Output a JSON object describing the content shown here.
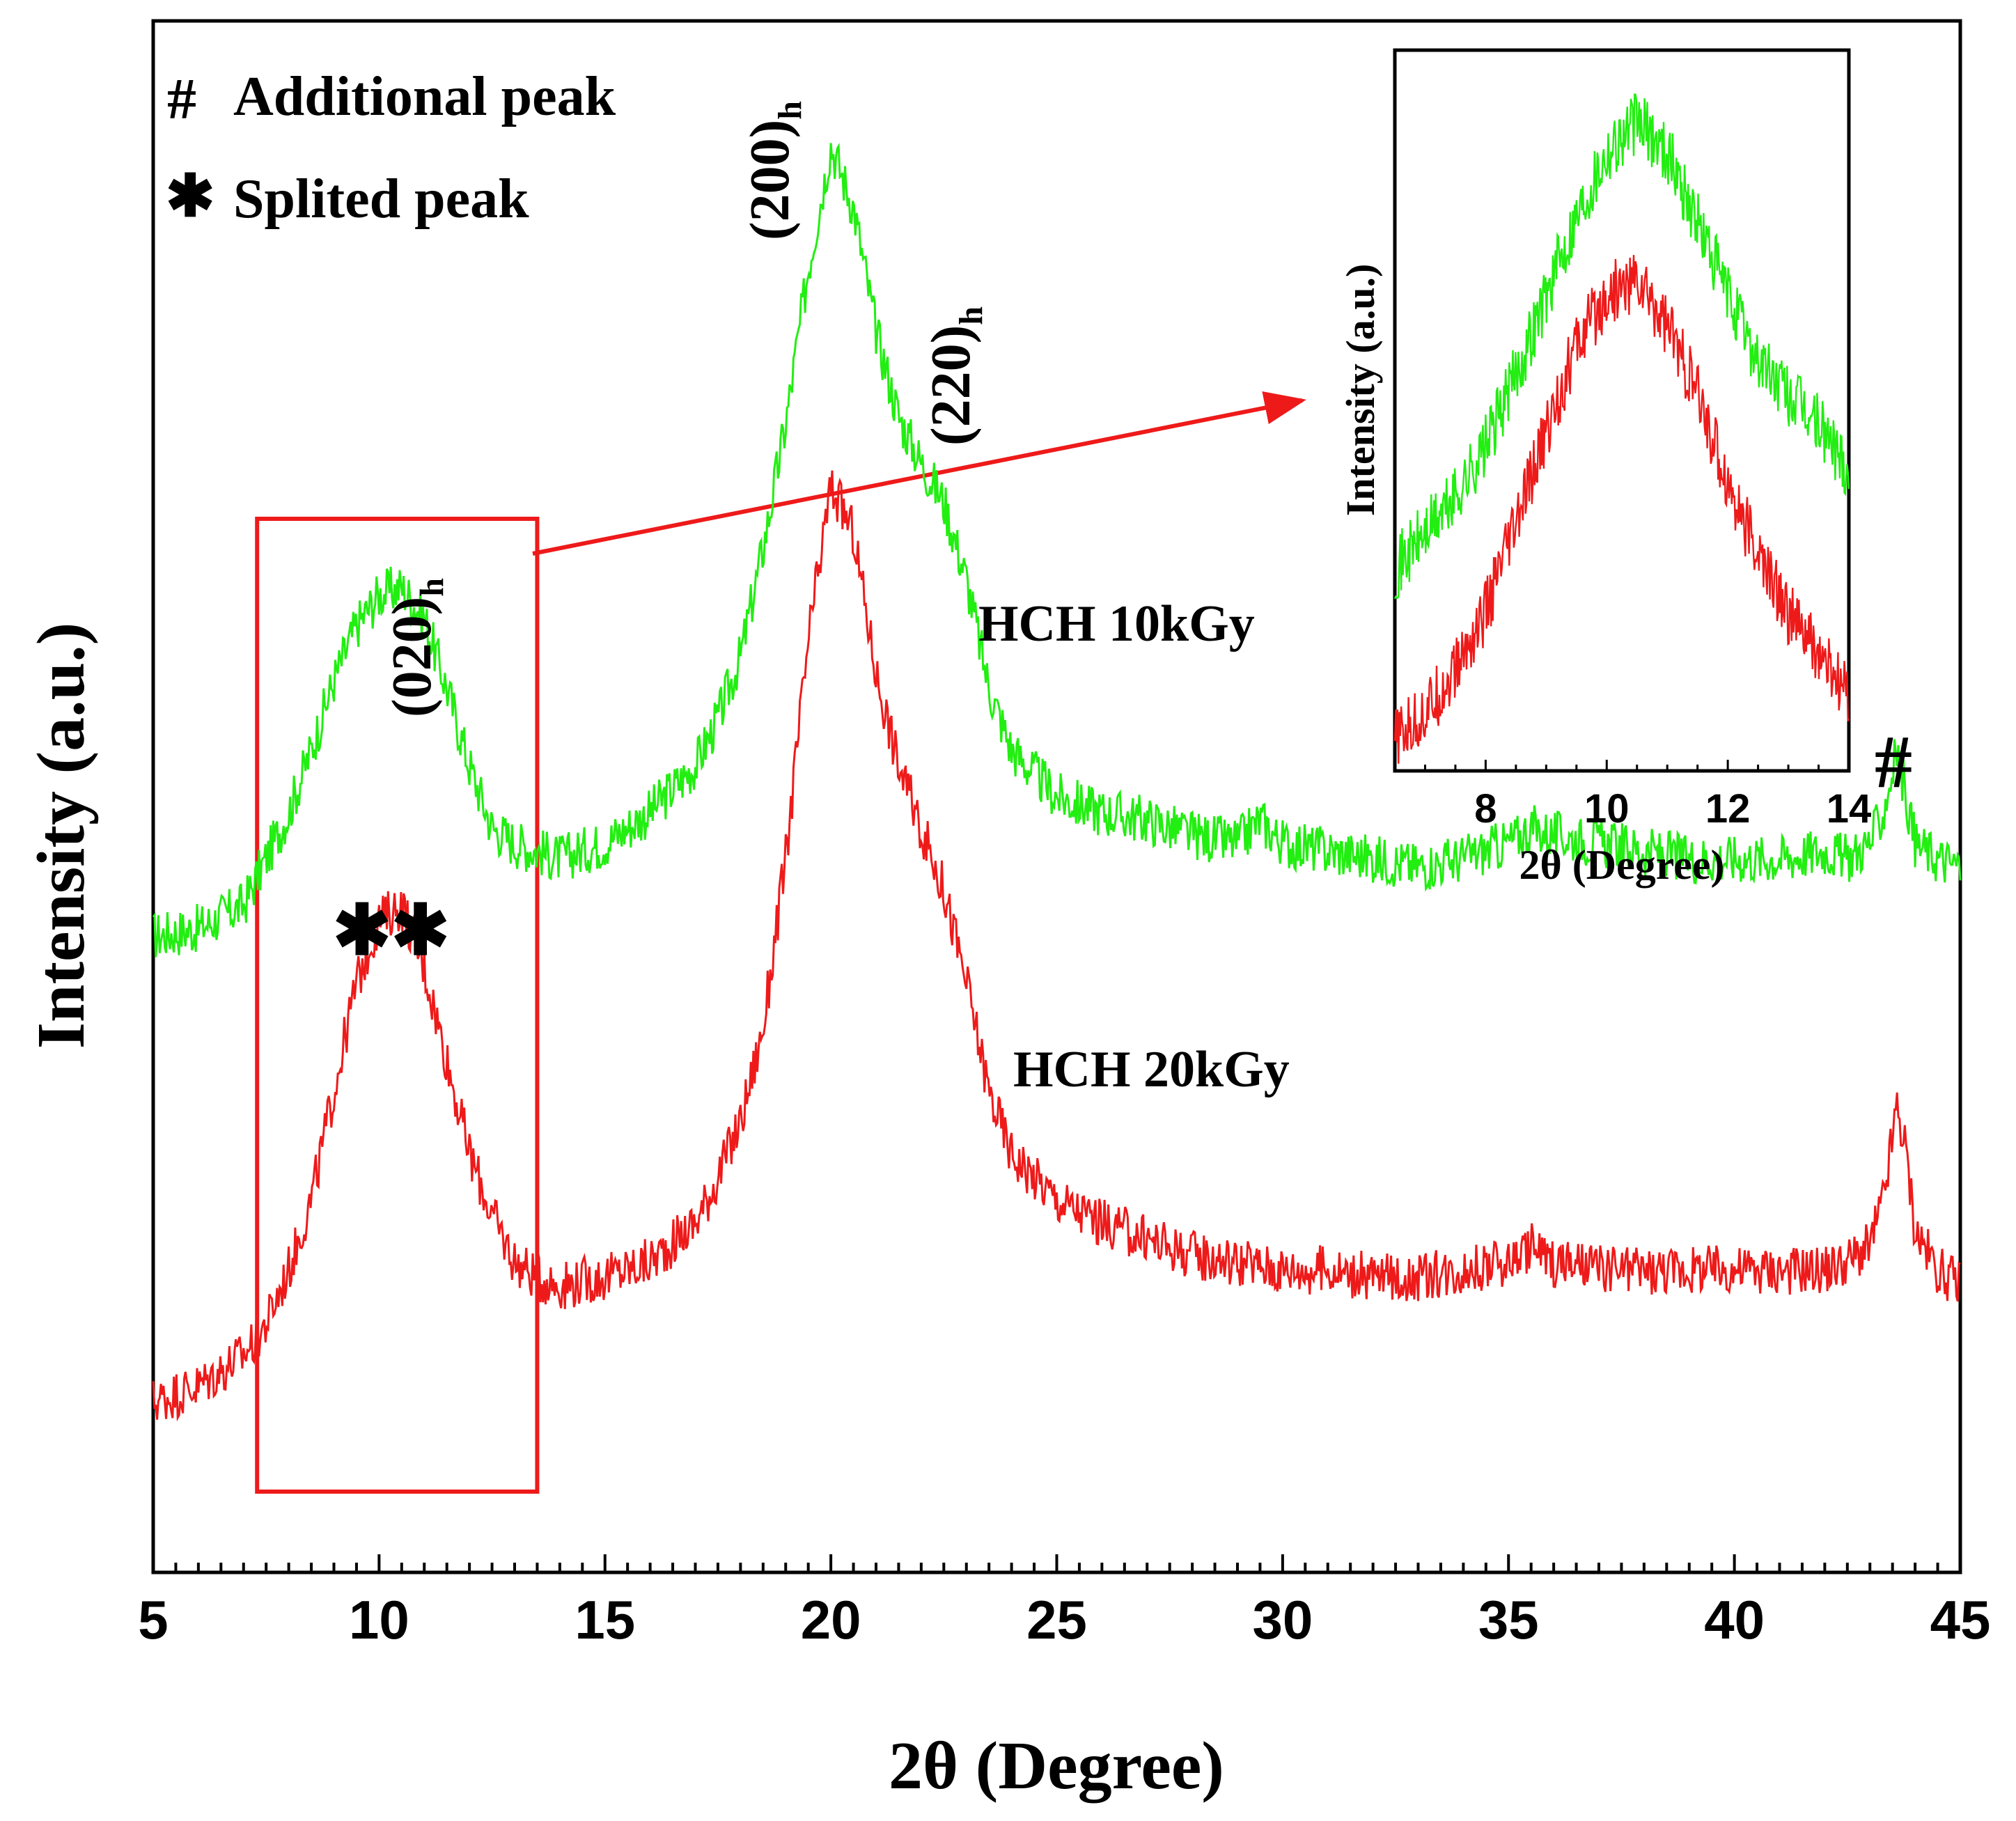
{
  "chart_data": {
    "type": "line",
    "title": "",
    "xlabel": "2θ (Degree)",
    "ylabel": "Intensity (a.u.)",
    "xlim": [
      5,
      45
    ],
    "ylim": [
      0,
      100
    ],
    "x_ticks": [
      5,
      10,
      15,
      20,
      25,
      30,
      35,
      40,
      45
    ],
    "x_tick_labels": [
      "5",
      "10",
      "15",
      "20",
      "25",
      "30",
      "35",
      "40",
      "45"
    ],
    "y_ticks_shown": false,
    "colors": {
      "hch_10kgy": "#22ee11",
      "hch_20kgy": "#ee1a1a",
      "box": "#ee1a1a",
      "axis": "#000000"
    },
    "series": [
      {
        "name": "HCH 10kGy",
        "color": "#22ee11",
        "x": [
          5,
          6,
          7,
          7.5,
          8,
          8.5,
          9,
          9.5,
          10,
          10.5,
          11,
          11.5,
          12,
          12.5,
          13,
          13.5,
          14,
          15,
          16,
          17,
          17.5,
          18,
          18.5,
          19,
          19.5,
          20,
          20.5,
          21,
          21.5,
          22,
          22.5,
          23,
          23.5,
          24,
          25,
          26,
          27,
          28,
          29,
          29.5,
          30,
          31,
          32,
          33,
          34,
          35,
          35.5,
          36,
          37,
          38,
          39,
          40,
          41,
          42,
          42.5,
          43,
          43.3,
          43.6,
          43.8,
          44,
          44.5,
          45
        ],
        "y": [
          41,
          41.5,
          43,
          46,
          49,
          53,
          57.5,
          61,
          63,
          63.5,
          61.5,
          57,
          52,
          48,
          47,
          46.5,
          46,
          47,
          49,
          52,
          55,
          59,
          66,
          74,
          84,
          92,
          88,
          80,
          74.5,
          71.5,
          69,
          64,
          57,
          53,
          50,
          49,
          48.5,
          47.5,
          47,
          48.5,
          47,
          46.5,
          46,
          45.5,
          46,
          47,
          48,
          47.5,
          47,
          46.5,
          46,
          46,
          46,
          46.5,
          46,
          47,
          49,
          53,
          50,
          47,
          46,
          45.5
        ]
      },
      {
        "name": "HCH 20kGy",
        "color": "#ee1a1a",
        "x": [
          5,
          6,
          7,
          7.5,
          8,
          8.5,
          9,
          9.5,
          10,
          10.5,
          11,
          11.5,
          12,
          12.5,
          13,
          13.5,
          14,
          15,
          16,
          17,
          17.5,
          18,
          18.5,
          19,
          19.5,
          20,
          20.5,
          21,
          21.5,
          22,
          22.5,
          23,
          23.5,
          24,
          25,
          26,
          27,
          28,
          29,
          30,
          31,
          32,
          33,
          34,
          35,
          35.5,
          36,
          37,
          38,
          39,
          40,
          41,
          42,
          42.5,
          43,
          43.3,
          43.6,
          43.8,
          44,
          44.5,
          45
        ],
        "y": [
          11,
          12,
          14,
          16,
          19.5,
          24,
          31,
          38,
          42,
          43,
          39,
          33,
          27,
          23,
          20,
          19,
          18.5,
          19,
          20,
          22.5,
          25.5,
          29,
          35,
          46,
          60,
          70,
          67,
          58,
          52,
          48,
          44,
          38,
          31,
          27,
          24,
          22.5,
          21.5,
          20.5,
          20,
          19.5,
          19.5,
          19,
          19,
          19.5,
          20,
          21,
          20,
          19.5,
          19.5,
          19.5,
          19.5,
          19.5,
          19.5,
          20,
          21,
          24,
          30,
          27,
          22,
          19.5,
          18.5
        ]
      }
    ],
    "series_labels": [
      "HCH 10kGy",
      "HCH 20kGy"
    ],
    "peak_labels": [
      {
        "base": "(020)",
        "sub": "h",
        "x": 10.5
      },
      {
        "base": "(200)",
        "sub": "h",
        "x": 20
      },
      {
        "base": "(220)",
        "sub": "h",
        "x": 22.3
      }
    ],
    "markers": {
      "splitted": "✱✱",
      "additional": "#"
    },
    "legend_notes": [
      {
        "symbol": "#",
        "text": "Additional peak"
      },
      {
        "symbol": "✱",
        "text": "Splited peak"
      }
    ],
    "highlight_box": {
      "x_range": [
        7.3,
        13.5
      ]
    },
    "inset": {
      "xlabel": "2θ (Degree)",
      "ylabel": "Intensity (a.u.)",
      "xlim": [
        6.5,
        14
      ],
      "x_ticks": [
        8,
        10,
        12,
        14
      ],
      "x_tick_labels": [
        "8",
        "10",
        "12",
        "14"
      ],
      "series": [
        {
          "name": "HCH 10kGy",
          "color": "#22ee11",
          "x": [
            6.5,
            7,
            7.5,
            8,
            8.5,
            9,
            9.5,
            10,
            10.5,
            11,
            11.5,
            12,
            12.5,
            13,
            13.5,
            14
          ],
          "y": [
            28,
            33,
            38,
            45,
            55,
            66,
            77,
            86,
            90,
            86,
            76,
            66,
            57,
            52,
            48,
            42
          ]
        },
        {
          "name": "HCH 20kGy",
          "color": "#ee1a1a",
          "x": [
            6.5,
            7,
            7.5,
            8,
            8.5,
            9,
            9.5,
            10,
            10.5,
            11,
            11.5,
            12,
            12.5,
            13,
            13.5,
            14
          ],
          "y": [
            4,
            8,
            14,
            22,
            34,
            47,
            59,
            66,
            68,
            62,
            52,
            40,
            30,
            22,
            16,
            10
          ]
        }
      ]
    }
  }
}
